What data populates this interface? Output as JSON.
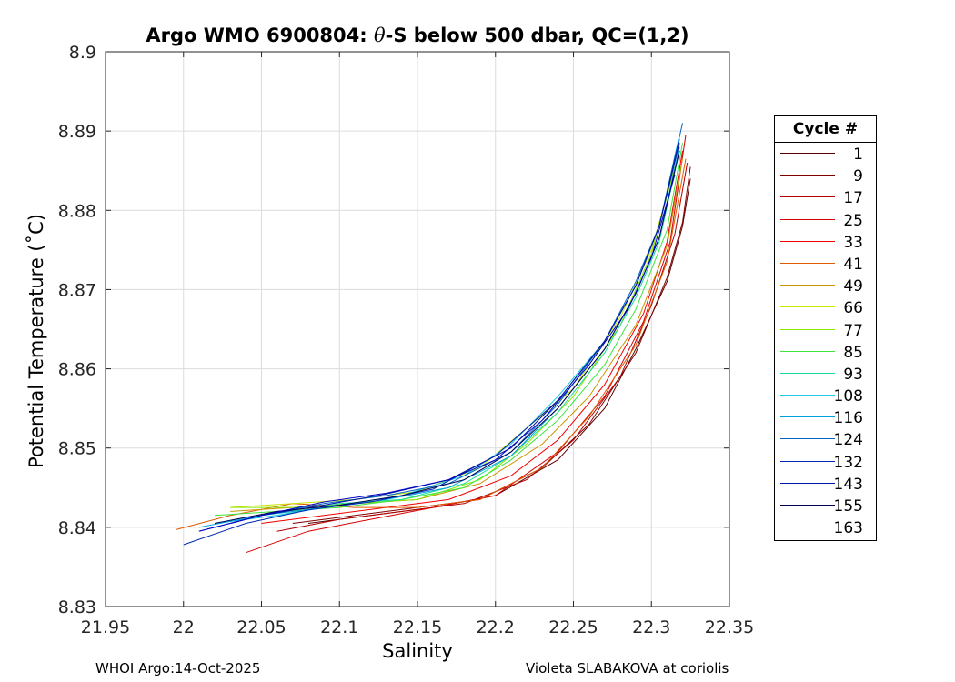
{
  "chart_data": {
    "type": "line",
    "title_main": "Argo WMO 6900804: ",
    "title_theta": "θ",
    "title_rest": "-S below 500 dbar,  QC=(1,2)",
    "xlabel": "Salinity",
    "ylabel": "Potential Temperature (˚C)",
    "xlim": [
      21.95,
      22.35
    ],
    "ylim": [
      8.83,
      8.9
    ],
    "xticks": [
      "21.95",
      "22",
      "22.05",
      "22.1",
      "22.15",
      "22.2",
      "22.25",
      "22.3",
      "22.35"
    ],
    "yticks": [
      "8.83",
      "8.84",
      "8.85",
      "8.86",
      "8.87",
      "8.88",
      "8.89",
      "8.9"
    ],
    "grid": true,
    "legend_title": "Cycle #",
    "legend_placement": "right-outside",
    "series": [
      {
        "name": "1",
        "color": "#5a0000",
        "x": [
          22.08,
          22.12,
          22.16,
          22.2,
          22.24,
          22.27,
          22.29,
          22.31,
          22.32,
          22.325
        ],
        "y": [
          8.8405,
          8.8415,
          8.8425,
          8.844,
          8.8485,
          8.855,
          8.8625,
          8.871,
          8.878,
          8.884
        ]
      },
      {
        "name": "9",
        "color": "#820000",
        "x": [
          22.07,
          22.11,
          22.15,
          22.19,
          22.23,
          22.26,
          22.29,
          22.31,
          22.32,
          22.325
        ],
        "y": [
          8.8405,
          8.8415,
          8.8425,
          8.8435,
          8.8475,
          8.853,
          8.862,
          8.8715,
          8.8785,
          8.8855
        ]
      },
      {
        "name": "17",
        "color": "#b20000",
        "x": [
          22.06,
          22.1,
          22.14,
          22.18,
          22.22,
          22.25,
          22.28,
          22.3,
          22.315,
          22.323
        ],
        "y": [
          8.8395,
          8.841,
          8.842,
          8.843,
          8.846,
          8.851,
          8.859,
          8.868,
          8.877,
          8.886
        ]
      },
      {
        "name": "25",
        "color": "#d60000",
        "x": [
          22.04,
          22.08,
          22.12,
          22.16,
          22.2,
          22.24,
          22.27,
          22.295,
          22.312,
          22.322
        ],
        "y": [
          8.8368,
          8.8395,
          8.841,
          8.8425,
          8.844,
          8.8495,
          8.8565,
          8.866,
          8.876,
          8.8895
        ]
      },
      {
        "name": "33",
        "color": "#f20000",
        "x": [
          22.05,
          22.09,
          22.13,
          22.17,
          22.21,
          22.24,
          22.27,
          22.295,
          22.31,
          22.32
        ],
        "y": [
          8.8405,
          8.8415,
          8.8425,
          8.8435,
          8.8465,
          8.851,
          8.858,
          8.867,
          8.876,
          8.8875
        ]
      },
      {
        "name": "41",
        "color": "#e05a00",
        "x": [
          21.995,
          22.03,
          22.07,
          22.11,
          22.15,
          22.19,
          22.23,
          22.26,
          22.29,
          22.31,
          22.322
        ],
        "y": [
          8.8397,
          8.8415,
          8.843,
          8.8425,
          8.8425,
          8.8435,
          8.8475,
          8.854,
          8.863,
          8.8735,
          8.8865
        ]
      },
      {
        "name": "49",
        "color": "#c89600",
        "x": [
          22.03,
          22.07,
          22.11,
          22.15,
          22.19,
          22.23,
          22.26,
          22.29,
          22.31,
          22.32
        ],
        "y": [
          8.842,
          8.8425,
          8.843,
          8.8435,
          8.8455,
          8.8505,
          8.8565,
          8.8655,
          8.8755,
          8.8865
        ]
      },
      {
        "name": "66",
        "color": "#c8e600",
        "x": [
          22.03,
          22.07,
          22.11,
          22.15,
          22.19,
          22.22,
          22.25,
          22.28,
          22.3,
          22.315
        ],
        "y": [
          8.8425,
          8.843,
          8.8435,
          8.8445,
          8.8475,
          8.8525,
          8.8575,
          8.8665,
          8.875,
          8.8855
        ]
      },
      {
        "name": "77",
        "color": "#8ce600",
        "x": [
          22.03,
          22.07,
          22.11,
          22.15,
          22.19,
          22.22,
          22.25,
          22.28,
          22.3,
          22.315
        ],
        "y": [
          8.8425,
          8.8425,
          8.843,
          8.8435,
          8.846,
          8.8505,
          8.8565,
          8.8655,
          8.8745,
          8.8855
        ]
      },
      {
        "name": "85",
        "color": "#3ce63c",
        "x": [
          22.02,
          22.06,
          22.1,
          22.14,
          22.18,
          22.21,
          22.24,
          22.27,
          22.29,
          22.31,
          22.32
        ],
        "y": [
          8.8415,
          8.842,
          8.8425,
          8.8435,
          8.845,
          8.8485,
          8.8535,
          8.8605,
          8.8675,
          8.8775,
          8.8885
        ]
      },
      {
        "name": "93",
        "color": "#1edc96",
        "x": [
          22.02,
          22.06,
          22.1,
          22.14,
          22.18,
          22.21,
          22.24,
          22.27,
          22.29,
          22.305,
          22.318
        ],
        "y": [
          8.8405,
          8.8415,
          8.843,
          8.8435,
          8.8455,
          8.849,
          8.8545,
          8.862,
          8.869,
          8.876,
          8.8875
        ]
      },
      {
        "name": "108",
        "color": "#1ec8e6",
        "x": [
          22.02,
          22.06,
          22.1,
          22.14,
          22.18,
          22.21,
          22.24,
          22.27,
          22.29,
          22.305,
          22.318
        ],
        "y": [
          8.8405,
          8.8415,
          8.8428,
          8.844,
          8.8465,
          8.8505,
          8.8565,
          8.8635,
          8.8705,
          8.878,
          8.8895
        ]
      },
      {
        "name": "116",
        "color": "#00a0dc",
        "x": [
          22.01,
          22.05,
          22.09,
          22.13,
          22.17,
          22.21,
          22.24,
          22.27,
          22.29,
          22.305,
          22.318
        ],
        "y": [
          8.84,
          8.8415,
          8.8425,
          8.8435,
          8.845,
          8.849,
          8.855,
          8.8625,
          8.8695,
          8.8765,
          8.888
        ]
      },
      {
        "name": "124",
        "color": "#0064c8",
        "x": [
          22.01,
          22.05,
          22.09,
          22.13,
          22.17,
          22.21,
          22.24,
          22.27,
          22.29,
          22.305,
          22.32
        ],
        "y": [
          8.8395,
          8.8415,
          8.843,
          8.844,
          8.8455,
          8.8495,
          8.8555,
          8.8635,
          8.871,
          8.878,
          8.891
        ]
      },
      {
        "name": "132",
        "color": "#0028b4",
        "x": [
          22.0,
          22.04,
          22.08,
          22.12,
          22.16,
          22.2,
          22.24,
          22.27,
          22.29,
          22.305,
          22.318
        ],
        "y": [
          8.8378,
          8.8405,
          8.8422,
          8.8432,
          8.8448,
          8.849,
          8.856,
          8.8635,
          8.8705,
          8.878,
          8.889
        ]
      },
      {
        "name": "143",
        "color": "#0014a0",
        "x": [
          22.01,
          22.05,
          22.09,
          22.13,
          22.17,
          22.21,
          22.24,
          22.27,
          22.29,
          22.305,
          22.318
        ],
        "y": [
          8.8395,
          8.8415,
          8.8428,
          8.8442,
          8.846,
          8.85,
          8.856,
          8.8635,
          8.8705,
          8.878,
          8.8885
        ]
      },
      {
        "name": "155",
        "color": "#000050",
        "x": [
          22.02,
          22.06,
          22.1,
          22.14,
          22.18,
          22.21,
          22.24,
          22.27,
          22.29,
          22.305,
          22.318
        ],
        "y": [
          8.8405,
          8.842,
          8.8428,
          8.844,
          8.846,
          8.8495,
          8.855,
          8.8625,
          8.8695,
          8.8765,
          8.8875
        ]
      },
      {
        "name": "163",
        "color": "#0000c8",
        "x": [
          22.01,
          22.05,
          22.09,
          22.13,
          22.17,
          22.2,
          22.23,
          22.26,
          22.285,
          22.3,
          22.315
        ],
        "y": [
          8.8395,
          8.8415,
          8.8432,
          8.8443,
          8.846,
          8.8485,
          8.8535,
          8.8605,
          8.8675,
          8.874,
          8.8845
        ]
      }
    ]
  },
  "footer": {
    "left": "WHOI Argo:14-Oct-2025",
    "right": "Violeta SLABAKOVA at coriolis"
  }
}
